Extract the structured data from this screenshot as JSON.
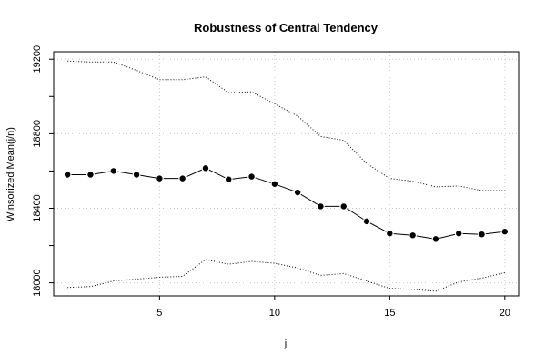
{
  "chart_data": {
    "type": "line",
    "title": "Robustness of Central Tendency",
    "xlabel": "j",
    "ylabel": "Winsorized Mean(j/n)",
    "xlim": [
      0.4,
      20.6
    ],
    "ylim": [
      17930,
      19240
    ],
    "x_ticks": [
      5,
      10,
      15,
      20
    ],
    "y_ticks": [
      18000,
      18400,
      18800,
      19200
    ],
    "grid": true,
    "x": [
      1,
      2,
      3,
      4,
      5,
      6,
      7,
      8,
      9,
      10,
      11,
      12,
      13,
      14,
      15,
      16,
      17,
      18,
      19,
      20
    ],
    "series": [
      {
        "style": "solid-points",
        "values": [
          18580,
          18580,
          18600,
          18580,
          18560,
          18560,
          18615,
          18555,
          18570,
          18530,
          18485,
          18410,
          18410,
          18330,
          18265,
          18255,
          18235,
          18265,
          18260,
          18275
        ]
      },
      {
        "style": "dotted",
        "values": [
          19190,
          19185,
          19185,
          19140,
          19090,
          19090,
          19105,
          19020,
          19025,
          18960,
          18895,
          18785,
          18765,
          18640,
          18560,
          18545,
          18515,
          18520,
          18495,
          18495
        ]
      },
      {
        "style": "dotted",
        "values": [
          17975,
          17980,
          18010,
          18020,
          18030,
          18035,
          18125,
          18100,
          18115,
          18105,
          18080,
          18040,
          18050,
          18010,
          17970,
          17965,
          17955,
          18005,
          18025,
          18055
        ]
      }
    ]
  }
}
